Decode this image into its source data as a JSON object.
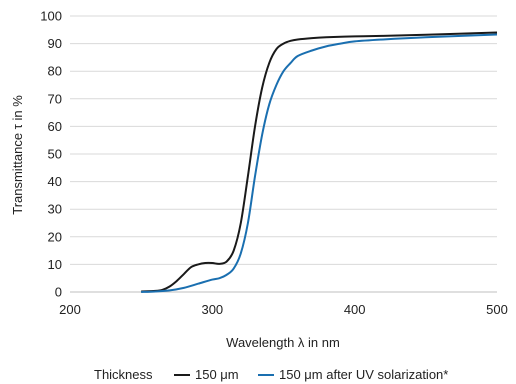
{
  "chart_data": {
    "type": "line",
    "title": "",
    "xlabel": "Wavelength λ in nm",
    "ylabel": "Transmittance τ in %",
    "xlim": [
      200,
      500
    ],
    "ylim": [
      0,
      100
    ],
    "xticks": [
      200,
      300,
      400,
      500
    ],
    "yticks": [
      0,
      10,
      20,
      30,
      40,
      50,
      60,
      70,
      80,
      90,
      100
    ],
    "grid": "horizontal",
    "legend": {
      "title": "Thickness",
      "placement": "bottom"
    },
    "series": [
      {
        "name": "150 μm",
        "color": "#1a1a1a",
        "x": [
          250,
          260,
          265,
          270,
          275,
          280,
          285,
          290,
          295,
          300,
          305,
          310,
          315,
          320,
          325,
          330,
          335,
          340,
          345,
          350,
          355,
          360,
          370,
          380,
          400,
          420,
          450,
          500
        ],
        "y": [
          0.2,
          0.4,
          0.8,
          2,
          4,
          6.5,
          9,
          10,
          10.5,
          10.5,
          10.2,
          11,
          15,
          25,
          42,
          60,
          74,
          83,
          88,
          90,
          91,
          91.5,
          92,
          92.3,
          92.6,
          92.8,
          93.2,
          94
        ]
      },
      {
        "name": "150 μm after UV solarization*",
        "color": "#1a6fb0",
        "x": [
          250,
          260,
          270,
          280,
          290,
          300,
          305,
          310,
          315,
          320,
          325,
          330,
          335,
          340,
          345,
          350,
          355,
          360,
          370,
          380,
          390,
          400,
          420,
          450,
          500
        ],
        "y": [
          0,
          0.2,
          0.6,
          1.5,
          3,
          4.5,
          5,
          6.2,
          8.5,
          14,
          25,
          42,
          57,
          68,
          75,
          80,
          83,
          85.5,
          87.5,
          89,
          90,
          90.8,
          91.5,
          92.3,
          93.3
        ]
      }
    ]
  }
}
